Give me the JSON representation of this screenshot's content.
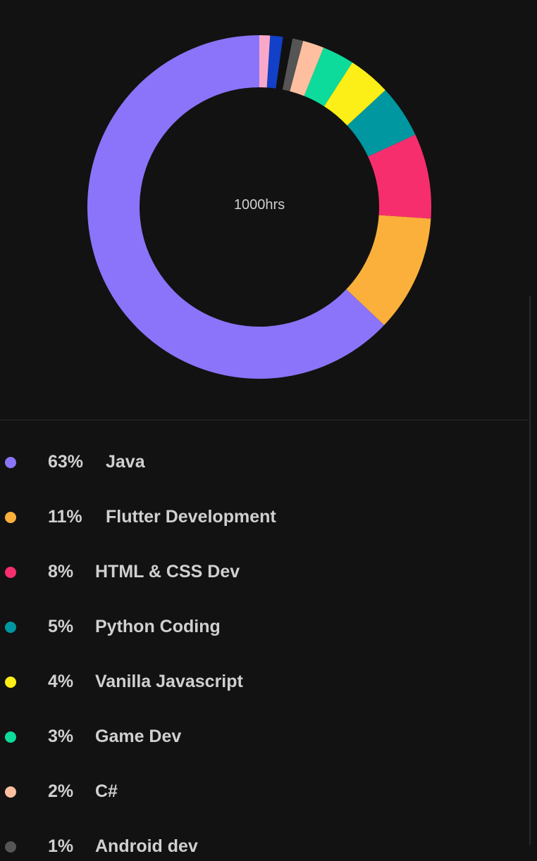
{
  "chart_data": {
    "type": "pie",
    "center_label": "1000hrs",
    "slices": [
      {
        "label": "Java",
        "percent_label": "63%",
        "value": 63,
        "color": "#8b74f9"
      },
      {
        "label": "Flutter Development",
        "percent_label": "11%",
        "value": 11,
        "color": "#fbb03b"
      },
      {
        "label": "HTML & CSS Dev",
        "percent_label": "8%",
        "value": 8,
        "color": "#f72e6e"
      },
      {
        "label": "Python Coding",
        "percent_label": "5%",
        "value": 5,
        "color": "#0097a0"
      },
      {
        "label": "Vanilla Javascript",
        "percent_label": "4%",
        "value": 4,
        "color": "#fcee17"
      },
      {
        "label": "Game Dev",
        "percent_label": "3%",
        "value": 3,
        "color": "#0ddb9c"
      },
      {
        "label": "C#",
        "percent_label": "2%",
        "value": 2,
        "color": "#fdbf9f"
      },
      {
        "label": "Android dev",
        "percent_label": "1%",
        "value": 1,
        "color": "#555555"
      }
    ],
    "unlisted_slices": [
      {
        "value": 0.9,
        "color": "#111111"
      },
      {
        "value": 1.2,
        "color": "#1240c8"
      },
      {
        "value": 1.0,
        "color": "#f8a8c8"
      }
    ]
  }
}
